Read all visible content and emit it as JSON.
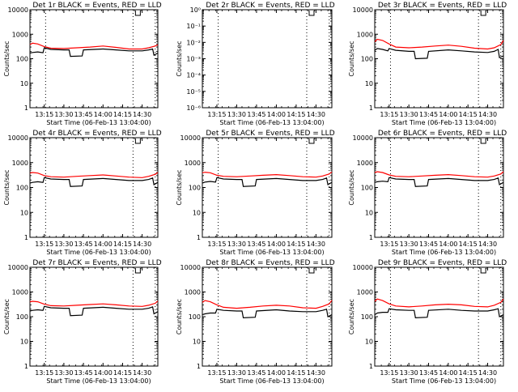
{
  "chart_data": [
    {
      "type": "line",
      "title": "Det 1r BLACK = Events, RED = LLD",
      "xlabel": "Start Time (06-Feb-13 13:04:00)",
      "ylabel": "Counts/sec",
      "yscale": "log",
      "ylim": [
        1,
        10000
      ],
      "yticks": [
        "1",
        "10",
        "100",
        "1000",
        "10000"
      ],
      "xlim": [
        "13:04",
        "14:42"
      ],
      "xticks": [
        "13:15",
        "13:30",
        "13:45",
        "14:00",
        "14:15",
        "14:30"
      ],
      "markers": [
        "13:16",
        "14:23",
        "14:40"
      ],
      "series": [
        {
          "color": "#ff0000",
          "x": [
            "13:04",
            "13:06",
            "13:10",
            "13:15",
            "13:20",
            "13:30",
            "13:40",
            "13:50",
            "14:00",
            "14:10",
            "14:20",
            "14:30",
            "14:35",
            "14:40",
            "14:42"
          ],
          "y": [
            380,
            430,
            400,
            310,
            270,
            260,
            280,
            300,
            330,
            290,
            250,
            250,
            280,
            330,
            370
          ]
        },
        {
          "color": "#000000",
          "x": [
            "13:04",
            "13:06",
            "13:10",
            "13:14",
            "13:15",
            "13:20",
            "13:30",
            "13:34",
            "13:35",
            "13:44",
            "13:45",
            "14:00",
            "14:10",
            "14:20",
            "14:30",
            "14:35",
            "14:38",
            "14:39",
            "14:42"
          ],
          "y": [
            170,
            180,
            190,
            175,
            280,
            240,
            230,
            230,
            125,
            130,
            230,
            250,
            230,
            210,
            210,
            230,
            250,
            140,
            170
          ]
        }
      ]
    },
    {
      "type": "line",
      "title": "Det 2r BLACK = Events, RED = LLD",
      "xlabel": "Start Time (06-Feb-13 13:04:00)",
      "ylabel": "Counts/sec",
      "yscale": "log",
      "ylim": [
        1e-06,
        1
      ],
      "yticks": [
        "10⁻⁶",
        "10⁻⁵",
        "10⁻⁴",
        "10⁻³",
        "10⁻²",
        "10⁻¹",
        "10⁰"
      ],
      "xlim": [
        "13:04",
        "14:42"
      ],
      "xticks": [
        "13:15",
        "13:30",
        "13:45",
        "14:00",
        "14:15",
        "14:30"
      ],
      "markers": [
        "13:16",
        "14:23",
        "14:40"
      ],
      "series": []
    },
    {
      "type": "line",
      "title": "Det 3r BLACK = Events, RED = LLD",
      "xlabel": "Start Time (06-Feb-13 13:04:00)",
      "ylabel": "Counts/sec",
      "yscale": "log",
      "ylim": [
        1,
        10000
      ],
      "yticks": [
        "1",
        "10",
        "100",
        "1000",
        "10000"
      ],
      "xlim": [
        "13:04",
        "14:42"
      ],
      "xticks": [
        "13:15",
        "13:30",
        "13:45",
        "14:00",
        "14:15",
        "14:30"
      ],
      "markers": [
        "13:16",
        "14:23",
        "14:40"
      ],
      "series": [
        {
          "color": "#ff0000",
          "x": [
            "13:04",
            "13:06",
            "13:10",
            "13:15",
            "13:20",
            "13:30",
            "13:40",
            "13:50",
            "14:00",
            "14:10",
            "14:20",
            "14:30",
            "14:35",
            "14:40",
            "14:42"
          ],
          "y": [
            500,
            620,
            560,
            400,
            300,
            280,
            300,
            330,
            360,
            320,
            270,
            250,
            280,
            380,
            560
          ]
        },
        {
          "color": "#000000",
          "x": [
            "13:04",
            "13:06",
            "13:10",
            "13:14",
            "13:15",
            "13:20",
            "13:30",
            "13:34",
            "13:35",
            "13:44",
            "13:45",
            "14:00",
            "14:10",
            "14:20",
            "14:30",
            "14:35",
            "14:38",
            "14:39",
            "14:42"
          ],
          "y": [
            220,
            260,
            240,
            210,
            260,
            220,
            200,
            200,
            100,
            105,
            200,
            230,
            210,
            190,
            180,
            200,
            240,
            110,
            130
          ]
        }
      ]
    },
    {
      "type": "line",
      "title": "Det 4r BLACK = Events, RED = LLD",
      "xlabel": "Start Time (06-Feb-13 13:04:00)",
      "ylabel": "Counts/sec",
      "yscale": "log",
      "ylim": [
        1,
        10000
      ],
      "yticks": [
        "1",
        "10",
        "100",
        "1000",
        "10000"
      ],
      "xlim": [
        "13:04",
        "14:42"
      ],
      "xticks": [
        "13:15",
        "13:30",
        "13:45",
        "14:00",
        "14:15",
        "14:30"
      ],
      "markers": [
        "13:16",
        "14:23",
        "14:40"
      ],
      "series": [
        {
          "color": "#ff0000",
          "x": [
            "13:04",
            "13:06",
            "13:10",
            "13:15",
            "13:20",
            "13:30",
            "13:40",
            "13:50",
            "14:00",
            "14:10",
            "14:20",
            "14:30",
            "14:35",
            "14:40",
            "14:42"
          ],
          "y": [
            380,
            400,
            380,
            300,
            270,
            260,
            280,
            300,
            320,
            290,
            260,
            250,
            280,
            340,
            400
          ]
        },
        {
          "color": "#000000",
          "x": [
            "13:04",
            "13:06",
            "13:10",
            "13:14",
            "13:15",
            "13:20",
            "13:30",
            "13:34",
            "13:35",
            "13:44",
            "13:45",
            "14:00",
            "14:10",
            "14:20",
            "14:30",
            "14:35",
            "14:38",
            "14:39",
            "14:42"
          ],
          "y": [
            150,
            160,
            170,
            160,
            250,
            220,
            210,
            210,
            110,
            115,
            210,
            230,
            210,
            190,
            190,
            210,
            240,
            130,
            160
          ]
        }
      ]
    },
    {
      "type": "line",
      "title": "Det 5r BLACK = Events, RED = LLD",
      "xlabel": "Start Time (06-Feb-13 13:04:00)",
      "ylabel": "Counts/sec",
      "yscale": "log",
      "ylim": [
        1,
        10000
      ],
      "yticks": [
        "1",
        "10",
        "100",
        "1000",
        "10000"
      ],
      "xlim": [
        "13:04",
        "14:42"
      ],
      "xticks": [
        "13:15",
        "13:30",
        "13:45",
        "14:00",
        "14:15",
        "14:30"
      ],
      "markers": [
        "13:16",
        "14:23",
        "14:40"
      ],
      "series": [
        {
          "color": "#ff0000",
          "x": [
            "13:04",
            "13:06",
            "13:10",
            "13:15",
            "13:20",
            "13:30",
            "13:40",
            "13:50",
            "14:00",
            "14:10",
            "14:20",
            "14:30",
            "14:35",
            "14:40",
            "14:42"
          ],
          "y": [
            390,
            410,
            390,
            310,
            280,
            270,
            290,
            310,
            330,
            300,
            270,
            260,
            290,
            350,
            420
          ]
        },
        {
          "color": "#000000",
          "x": [
            "13:04",
            "13:06",
            "13:10",
            "13:14",
            "13:15",
            "13:20",
            "13:30",
            "13:34",
            "13:35",
            "13:44",
            "13:45",
            "14:00",
            "14:10",
            "14:20",
            "14:30",
            "14:35",
            "14:38",
            "14:39",
            "14:42"
          ],
          "y": [
            150,
            165,
            175,
            165,
            250,
            220,
            210,
            210,
            110,
            115,
            210,
            230,
            210,
            190,
            190,
            210,
            240,
            130,
            160
          ]
        }
      ]
    },
    {
      "type": "line",
      "title": "Det 6r BLACK = Events, RED = LLD",
      "xlabel": "Start Time (06-Feb-13 13:04:00)",
      "ylabel": "Counts/sec",
      "yscale": "log",
      "ylim": [
        1,
        10000
      ],
      "yticks": [
        "1",
        "10",
        "100",
        "1000",
        "10000"
      ],
      "xlim": [
        "13:04",
        "14:42"
      ],
      "xticks": [
        "13:15",
        "13:30",
        "13:45",
        "14:00",
        "14:15",
        "14:30"
      ],
      "markers": [
        "13:16",
        "14:23",
        "14:40"
      ],
      "series": [
        {
          "color": "#ff0000",
          "x": [
            "13:04",
            "13:06",
            "13:10",
            "13:15",
            "13:20",
            "13:30",
            "13:40",
            "13:50",
            "14:00",
            "14:10",
            "14:20",
            "14:30",
            "14:35",
            "14:40",
            "14:42"
          ],
          "y": [
            400,
            430,
            400,
            320,
            280,
            270,
            290,
            310,
            330,
            300,
            270,
            260,
            290,
            350,
            430
          ]
        },
        {
          "color": "#000000",
          "x": [
            "13:04",
            "13:06",
            "13:10",
            "13:14",
            "13:15",
            "13:20",
            "13:30",
            "13:34",
            "13:35",
            "13:44",
            "13:45",
            "14:00",
            "14:10",
            "14:20",
            "14:30",
            "14:35",
            "14:38",
            "14:39",
            "14:42"
          ],
          "y": [
            160,
            170,
            180,
            170,
            250,
            220,
            210,
            210,
            110,
            115,
            210,
            230,
            210,
            190,
            190,
            210,
            240,
            130,
            160
          ]
        }
      ]
    },
    {
      "type": "line",
      "title": "Det 7r BLACK = Events, RED = LLD",
      "xlabel": "Start Time (06-Feb-13 13:04:00)",
      "ylabel": "Counts/sec",
      "yscale": "log",
      "ylim": [
        1,
        10000
      ],
      "yticks": [
        "1",
        "10",
        "100",
        "1000",
        "10000"
      ],
      "xlim": [
        "13:04",
        "14:42"
      ],
      "xticks": [
        "13:15",
        "13:30",
        "13:45",
        "14:00",
        "14:15",
        "14:30"
      ],
      "markers": [
        "13:16",
        "14:23",
        "14:40"
      ],
      "series": [
        {
          "color": "#ff0000",
          "x": [
            "13:04",
            "13:06",
            "13:10",
            "13:15",
            "13:20",
            "13:30",
            "13:40",
            "13:50",
            "14:00",
            "14:10",
            "14:20",
            "14:30",
            "14:35",
            "14:40",
            "14:42"
          ],
          "y": [
            400,
            420,
            400,
            320,
            280,
            270,
            290,
            310,
            330,
            300,
            270,
            260,
            290,
            350,
            430
          ]
        },
        {
          "color": "#000000",
          "x": [
            "13:04",
            "13:06",
            "13:10",
            "13:14",
            "13:15",
            "13:20",
            "13:30",
            "13:34",
            "13:35",
            "13:44",
            "13:45",
            "14:00",
            "14:10",
            "14:20",
            "14:30",
            "14:35",
            "14:38",
            "14:39",
            "14:42"
          ],
          "y": [
            170,
            180,
            190,
            180,
            260,
            230,
            220,
            220,
            110,
            115,
            220,
            240,
            220,
            200,
            200,
            220,
            250,
            130,
            160
          ]
        }
      ]
    },
    {
      "type": "line",
      "title": "Det 8r BLACK = Events, RED = LLD",
      "xlabel": "Start Time (06-Feb-13 13:04:00)",
      "ylabel": "Counts/sec",
      "yscale": "log",
      "ylim": [
        1,
        10000
      ],
      "yticks": [
        "1",
        "10",
        "100",
        "1000",
        "10000"
      ],
      "xlim": [
        "13:04",
        "14:42"
      ],
      "xticks": [
        "13:15",
        "13:30",
        "13:45",
        "14:00",
        "14:15",
        "14:30"
      ],
      "markers": [
        "13:16",
        "14:23",
        "14:40"
      ],
      "series": [
        {
          "color": "#ff0000",
          "x": [
            "13:04",
            "13:06",
            "13:10",
            "13:15",
            "13:20",
            "13:30",
            "13:40",
            "13:50",
            "14:00",
            "14:10",
            "14:20",
            "14:30",
            "14:35",
            "14:40",
            "14:42"
          ],
          "y": [
            380,
            450,
            400,
            300,
            240,
            220,
            240,
            270,
            290,
            270,
            230,
            220,
            260,
            330,
            460
          ]
        },
        {
          "color": "#000000",
          "x": [
            "13:04",
            "13:06",
            "13:10",
            "13:14",
            "13:15",
            "13:20",
            "13:30",
            "13:34",
            "13:35",
            "13:44",
            "13:45",
            "14:00",
            "14:10",
            "14:20",
            "14:30",
            "14:35",
            "14:38",
            "14:39",
            "14:42"
          ],
          "y": [
            120,
            130,
            140,
            140,
            200,
            180,
            170,
            170,
            90,
            95,
            170,
            190,
            170,
            160,
            160,
            180,
            200,
            100,
            120
          ]
        }
      ]
    },
    {
      "type": "line",
      "title": "Det 9r BLACK = Events, RED = LLD",
      "xlabel": "Start Time (06-Feb-13 13:04:00)",
      "ylabel": "Counts/sec",
      "yscale": "log",
      "ylim": [
        1,
        10000
      ],
      "yticks": [
        "1",
        "10",
        "100",
        "1000",
        "10000"
      ],
      "xlim": [
        "13:04",
        "14:42"
      ],
      "xticks": [
        "13:15",
        "13:30",
        "13:45",
        "14:00",
        "14:15",
        "14:30"
      ],
      "markers": [
        "13:16",
        "14:23",
        "14:40"
      ],
      "series": [
        {
          "color": "#ff0000",
          "x": [
            "13:04",
            "13:06",
            "13:10",
            "13:15",
            "13:20",
            "13:30",
            "13:40",
            "13:50",
            "14:00",
            "14:10",
            "14:20",
            "14:30",
            "14:35",
            "14:40",
            "14:42"
          ],
          "y": [
            420,
            520,
            450,
            330,
            270,
            250,
            270,
            300,
            320,
            300,
            260,
            250,
            290,
            380,
            520
          ]
        },
        {
          "color": "#000000",
          "x": [
            "13:04",
            "13:06",
            "13:10",
            "13:14",
            "13:15",
            "13:20",
            "13:30",
            "13:34",
            "13:35",
            "13:44",
            "13:45",
            "14:00",
            "14:10",
            "14:20",
            "14:30",
            "14:35",
            "14:38",
            "14:39",
            "14:42"
          ],
          "y": [
            120,
            140,
            150,
            150,
            210,
            190,
            180,
            180,
            90,
            95,
            180,
            200,
            180,
            170,
            170,
            190,
            210,
            100,
            120
          ]
        }
      ]
    }
  ]
}
